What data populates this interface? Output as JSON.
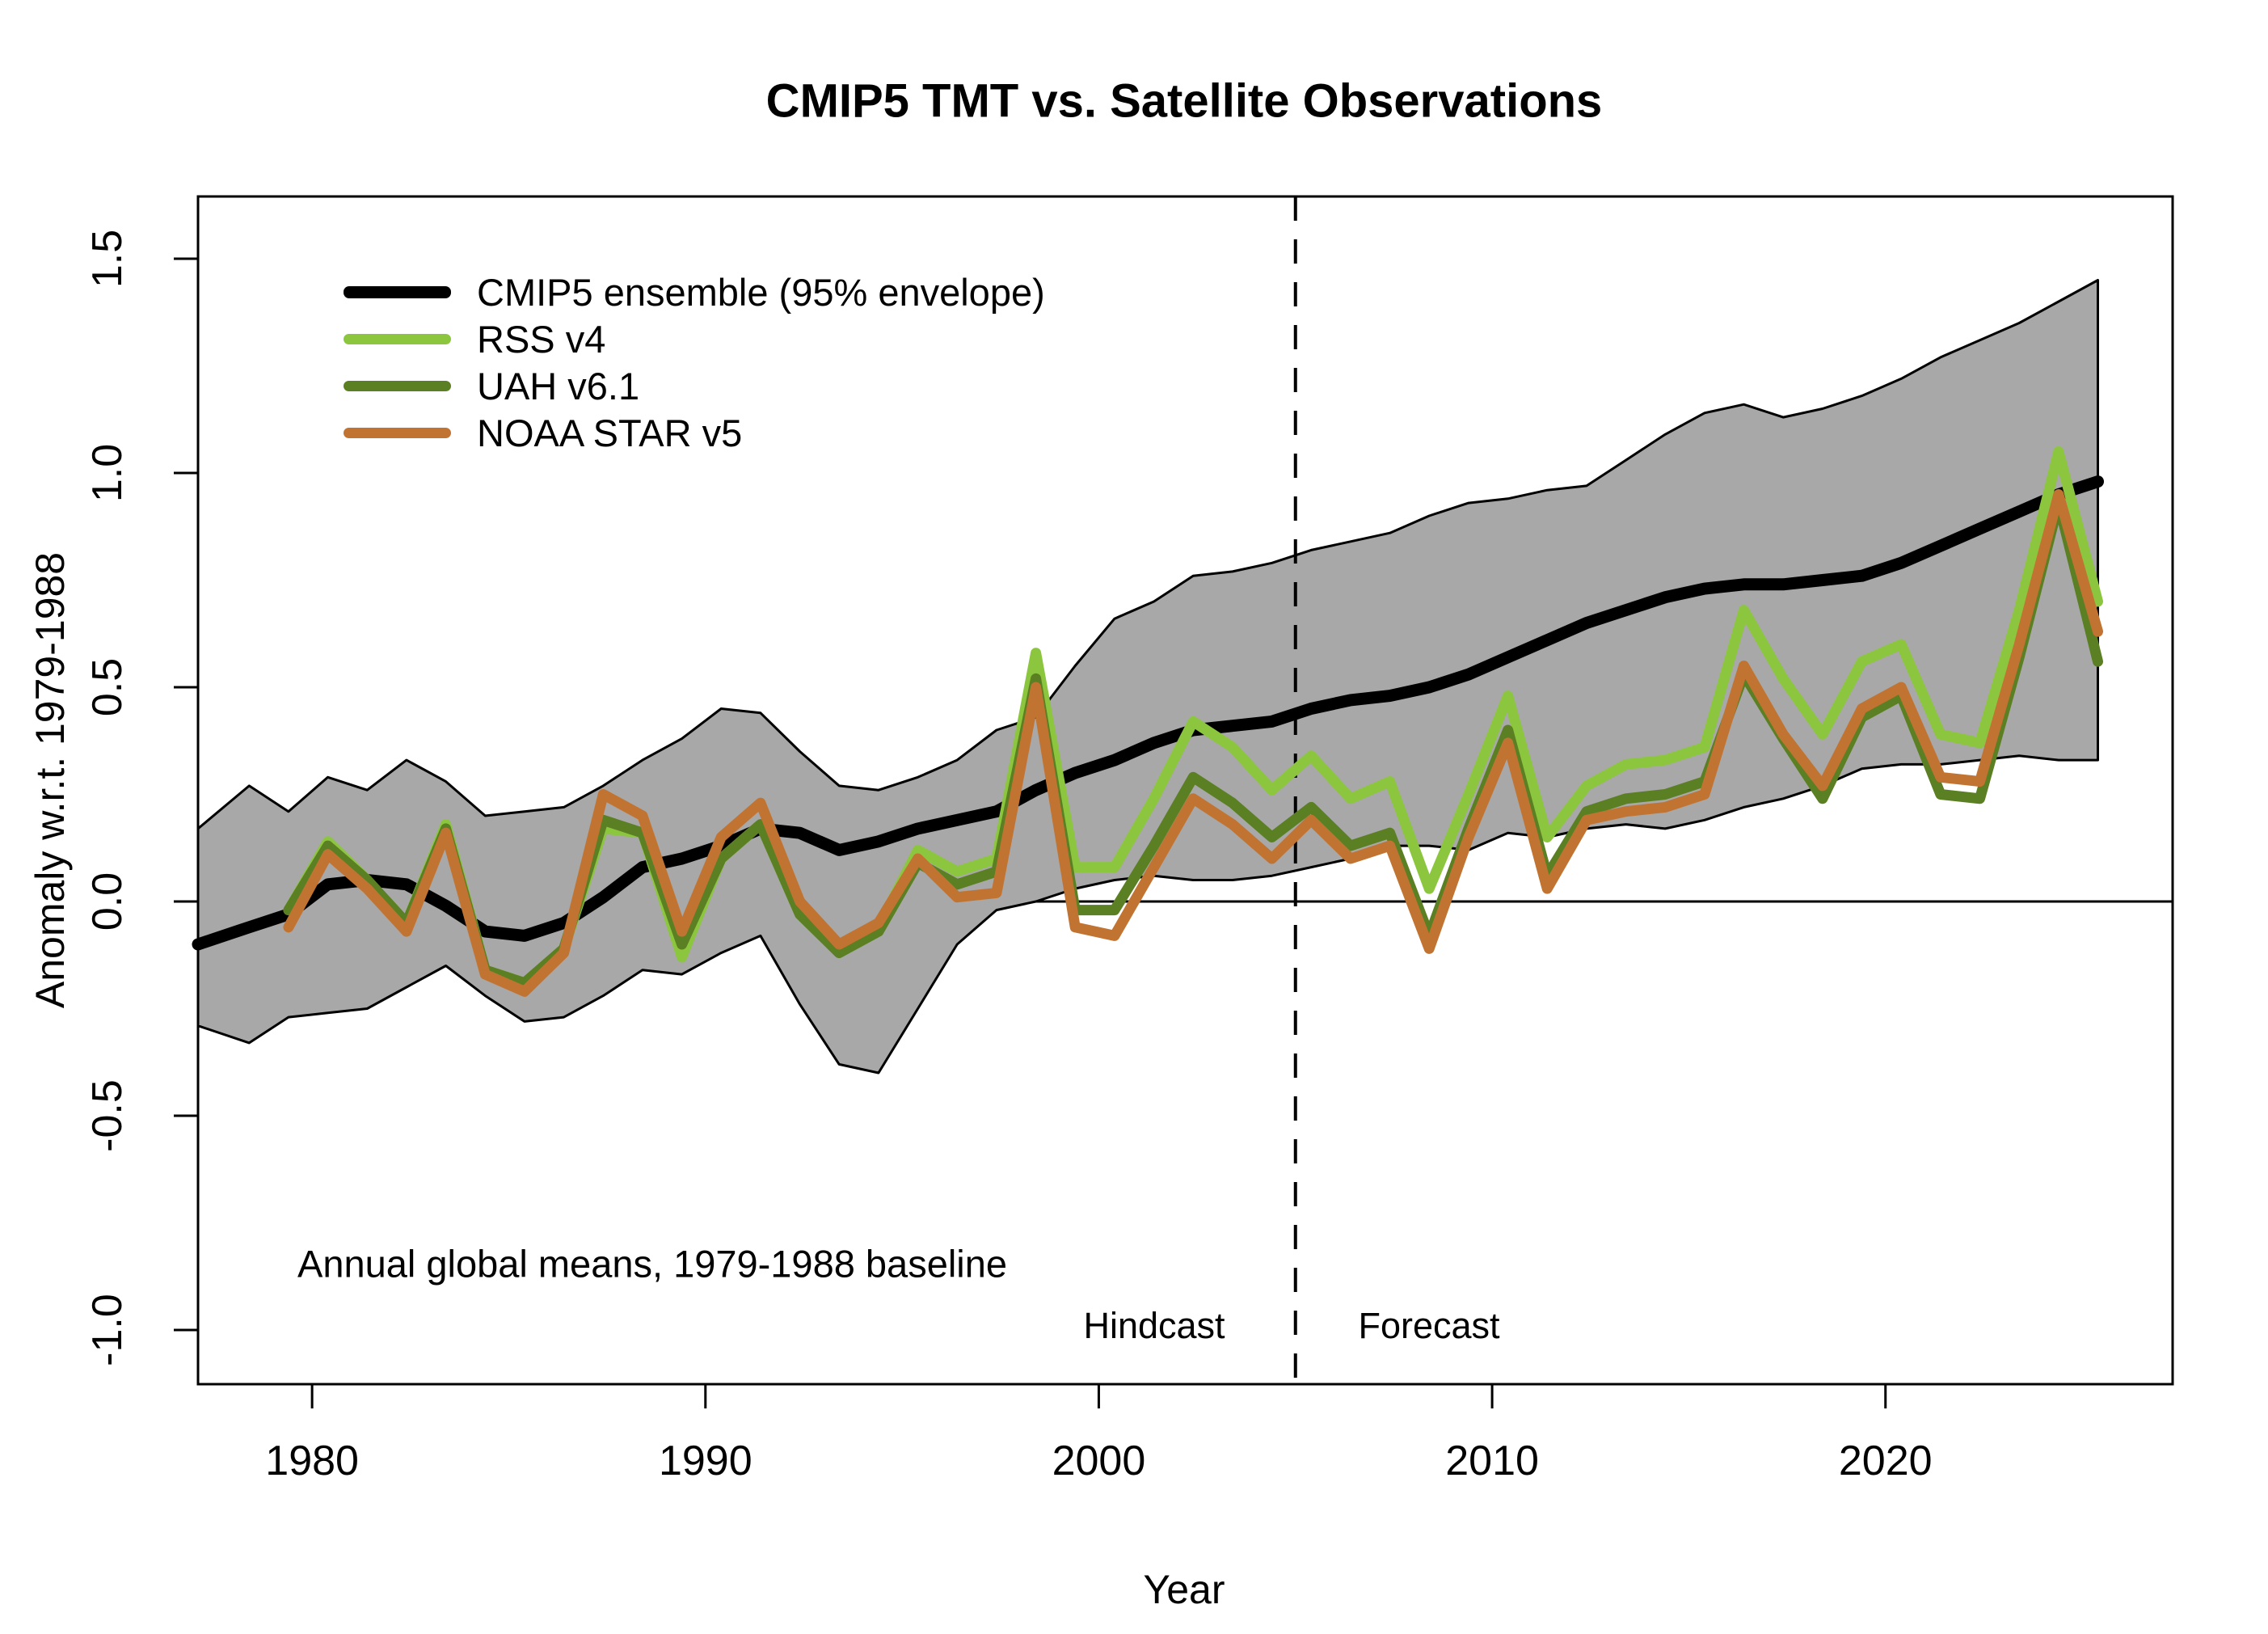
{
  "title": "CMIP5 TMT vs. Satellite Observations",
  "annotations": {
    "baseline_note": "Annual global means, 1979-1988 baseline",
    "hindcast_label": "Hindcast",
    "forecast_label": "Forecast"
  },
  "legend": {
    "items": [
      {
        "label": "CMIP5 ensemble (95% envelope)",
        "color": "#000000",
        "thickness": 15
      },
      {
        "label": "RSS v4",
        "color": "#8CC63F",
        "thickness": 13
      },
      {
        "label": "UAH v6.1",
        "color": "#5B7F23",
        "thickness": 13
      },
      {
        "label": "NOAA STAR v5",
        "color": "#C17432",
        "thickness": 13
      }
    ]
  },
  "chart_data": {
    "type": "line",
    "title": "CMIP5 TMT vs. Satellite Observations",
    "xlabel": "Year",
    "ylabel": "Anomaly w.r.t. 1979-1988",
    "xlim": [
      1977.1,
      2027.3
    ],
    "ylim": [
      -1.12,
      1.65
    ],
    "x_ticks": [
      1980,
      1990,
      2000,
      2010,
      2020
    ],
    "y_ticks": [
      -1.0,
      -0.5,
      0.0,
      0.5,
      1.0,
      1.5
    ],
    "grid": false,
    "legend_position": "top-left",
    "zero_line": 0.0,
    "divider": {
      "x": 2005,
      "style": "dashed",
      "left_label": "Hindcast",
      "right_label": "Forecast"
    },
    "band_color": "#A8A8A8",
    "ensemble": {
      "name": "CMIP5 ensemble (95% envelope)",
      "color": "#000000",
      "years": [
        1977,
        1978,
        1979,
        1980,
        1981,
        1982,
        1983,
        1984,
        1985,
        1986,
        1987,
        1988,
        1989,
        1990,
        1991,
        1992,
        1993,
        1994,
        1995,
        1996,
        1997,
        1998,
        1999,
        2000,
        2001,
        2002,
        2003,
        2004,
        2005,
        2006,
        2007,
        2008,
        2009,
        2010,
        2011,
        2012,
        2013,
        2014,
        2015,
        2016,
        2017,
        2018,
        2019,
        2020,
        2021,
        2022,
        2023,
        2024,
        2025
      ],
      "mean": [
        -0.1,
        -0.06,
        -0.03,
        0.04,
        0.05,
        0.04,
        -0.01,
        -0.07,
        -0.08,
        -0.05,
        0.01,
        0.08,
        0.1,
        0.13,
        0.17,
        0.16,
        0.12,
        0.14,
        0.17,
        0.19,
        0.21,
        0.26,
        0.3,
        0.33,
        0.37,
        0.4,
        0.41,
        0.42,
        0.45,
        0.47,
        0.48,
        0.5,
        0.53,
        0.57,
        0.61,
        0.65,
        0.68,
        0.71,
        0.73,
        0.74,
        0.74,
        0.75,
        0.76,
        0.79,
        0.83,
        0.87,
        0.91,
        0.95,
        0.98
      ],
      "upper": [
        0.17,
        0.27,
        0.21,
        0.29,
        0.26,
        0.33,
        0.28,
        0.2,
        0.21,
        0.22,
        0.27,
        0.33,
        0.38,
        0.45,
        0.44,
        0.35,
        0.27,
        0.26,
        0.29,
        0.33,
        0.4,
        0.43,
        0.55,
        0.66,
        0.7,
        0.76,
        0.77,
        0.79,
        0.82,
        0.84,
        0.86,
        0.9,
        0.93,
        0.94,
        0.96,
        0.97,
        1.03,
        1.09,
        1.14,
        1.16,
        1.13,
        1.15,
        1.18,
        1.22,
        1.27,
        1.31,
        1.35,
        1.4,
        1.45
      ],
      "lower": [
        -0.29,
        -0.33,
        -0.27,
        -0.26,
        -0.25,
        -0.2,
        -0.15,
        -0.22,
        -0.28,
        -0.27,
        -0.22,
        -0.16,
        -0.17,
        -0.12,
        -0.08,
        -0.24,
        -0.38,
        -0.4,
        -0.25,
        -0.1,
        -0.02,
        0.0,
        0.03,
        0.05,
        0.06,
        0.05,
        0.05,
        0.06,
        0.08,
        0.1,
        0.13,
        0.13,
        0.12,
        0.16,
        0.15,
        0.17,
        0.18,
        0.17,
        0.19,
        0.22,
        0.24,
        0.27,
        0.31,
        0.32,
        0.32,
        0.33,
        0.34,
        0.33,
        0.33
      ]
    },
    "series": [
      {
        "name": "RSS v4",
        "color": "#8CC63F",
        "years": [
          1979,
          1980,
          1981,
          1982,
          1983,
          1984,
          1985,
          1986,
          1987,
          1988,
          1989,
          1990,
          1991,
          1992,
          1993,
          1994,
          1995,
          1996,
          1997,
          1998,
          1999,
          2000,
          2001,
          2002,
          2003,
          2004,
          2005,
          2006,
          2007,
          2008,
          2009,
          2010,
          2011,
          2012,
          2013,
          2014,
          2015,
          2016,
          2017,
          2018,
          2019,
          2020,
          2021,
          2022,
          2023,
          2024,
          2025
        ],
        "values": [
          -0.02,
          0.14,
          0.05,
          -0.05,
          0.18,
          -0.16,
          -0.19,
          -0.11,
          0.17,
          0.16,
          -0.13,
          0.1,
          0.18,
          -0.03,
          -0.11,
          -0.06,
          0.12,
          0.07,
          0.1,
          0.58,
          0.08,
          0.08,
          0.24,
          0.42,
          0.36,
          0.26,
          0.34,
          0.24,
          0.28,
          0.03,
          0.25,
          0.48,
          0.15,
          0.27,
          0.32,
          0.33,
          0.36,
          0.68,
          0.52,
          0.39,
          0.56,
          0.6,
          0.39,
          0.37,
          0.68,
          1.05,
          0.7
        ]
      },
      {
        "name": "UAH v6.1",
        "color": "#5B7F23",
        "years": [
          1979,
          1980,
          1981,
          1982,
          1983,
          1984,
          1985,
          1986,
          1987,
          1988,
          1989,
          1990,
          1991,
          1992,
          1993,
          1994,
          1995,
          1996,
          1997,
          1998,
          1999,
          2000,
          2001,
          2002,
          2003,
          2004,
          2005,
          2006,
          2007,
          2008,
          2009,
          2010,
          2011,
          2012,
          2013,
          2014,
          2015,
          2016,
          2017,
          2018,
          2019,
          2020,
          2021,
          2022,
          2023,
          2024,
          2025
        ],
        "values": [
          -0.02,
          0.13,
          0.05,
          -0.05,
          0.17,
          -0.16,
          -0.19,
          -0.11,
          0.19,
          0.16,
          -0.1,
          0.1,
          0.18,
          -0.03,
          -0.12,
          -0.07,
          0.09,
          0.04,
          0.07,
          0.52,
          -0.02,
          -0.02,
          0.13,
          0.29,
          0.23,
          0.15,
          0.22,
          0.13,
          0.16,
          -0.08,
          0.17,
          0.4,
          0.06,
          0.21,
          0.24,
          0.25,
          0.28,
          0.53,
          0.38,
          0.24,
          0.43,
          0.48,
          0.25,
          0.24,
          0.57,
          0.93,
          0.56
        ]
      },
      {
        "name": "NOAA STAR v5",
        "color": "#C17432",
        "years": [
          1979,
          1980,
          1981,
          1982,
          1983,
          1984,
          1985,
          1986,
          1987,
          1988,
          1989,
          1990,
          1991,
          1992,
          1993,
          1994,
          1995,
          1996,
          1997,
          1998,
          1999,
          2000,
          2001,
          2002,
          2003,
          2004,
          2005,
          2006,
          2007,
          2008,
          2009,
          2010,
          2011,
          2012,
          2013,
          2014,
          2015,
          2016,
          2017,
          2018,
          2019,
          2020,
          2021,
          2022,
          2023,
          2024,
          2025
        ],
        "values": [
          -0.06,
          0.11,
          0.03,
          -0.07,
          0.16,
          -0.17,
          -0.21,
          -0.12,
          0.25,
          0.2,
          -0.07,
          0.15,
          0.23,
          0.0,
          -0.1,
          -0.05,
          0.1,
          0.01,
          0.02,
          0.5,
          -0.06,
          -0.08,
          0.08,
          0.24,
          0.18,
          0.1,
          0.19,
          0.1,
          0.13,
          -0.11,
          0.15,
          0.37,
          0.03,
          0.19,
          0.21,
          0.22,
          0.25,
          0.55,
          0.39,
          0.27,
          0.45,
          0.5,
          0.29,
          0.28,
          0.6,
          0.95,
          0.63
        ]
      }
    ]
  }
}
